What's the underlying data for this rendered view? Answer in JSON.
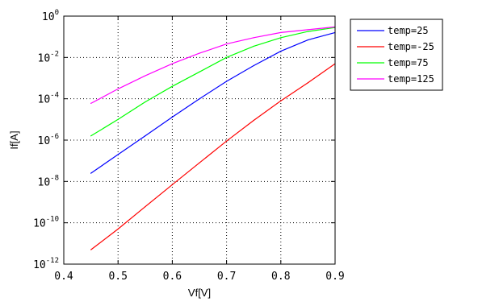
{
  "chart_data": {
    "type": "line",
    "xlabel": "Vf[V]",
    "ylabel": "If[A]",
    "xlim": [
      0.4,
      0.9
    ],
    "ylim_log10": [
      -12,
      0
    ],
    "y_scale": "log",
    "grid": true,
    "legend_placement": "outside-right",
    "x_ticks": [
      "0.4",
      "0.5",
      "0.6",
      "0.7",
      "0.8",
      "0.9"
    ],
    "y_ticks": [
      {
        "base": "10",
        "exp": "0"
      },
      {
        "base": "10",
        "exp": "-2"
      },
      {
        "base": "10",
        "exp": "-4"
      },
      {
        "base": "10",
        "exp": "-6"
      },
      {
        "base": "10",
        "exp": "-8"
      },
      {
        "base": "10",
        "exp": "-10"
      },
      {
        "base": "10",
        "exp": "-12"
      }
    ],
    "series": [
      {
        "name": "temp=25",
        "color": "#0000ff",
        "points": [
          [
            0.45,
            2.5e-08
          ],
          [
            0.5,
            2e-07
          ],
          [
            0.55,
            1.6e-06
          ],
          [
            0.6,
            1.3e-05
          ],
          [
            0.65,
            0.0001
          ],
          [
            0.7,
            0.0007
          ],
          [
            0.75,
            0.004
          ],
          [
            0.8,
            0.02
          ],
          [
            0.85,
            0.07
          ],
          [
            0.9,
            0.16
          ]
        ]
      },
      {
        "name": "temp=-25",
        "color": "#ff0000",
        "points": [
          [
            0.45,
            5e-12
          ],
          [
            0.5,
            5e-11
          ],
          [
            0.55,
            6e-10
          ],
          [
            0.6,
            7e-09
          ],
          [
            0.65,
            8e-08
          ],
          [
            0.7,
            9e-07
          ],
          [
            0.75,
            9e-06
          ],
          [
            0.8,
            8e-05
          ],
          [
            0.85,
            0.0006
          ],
          [
            0.9,
            0.005
          ]
        ]
      },
      {
        "name": "temp=75",
        "color": "#00ff00",
        "points": [
          [
            0.45,
            1.6e-06
          ],
          [
            0.5,
            1e-05
          ],
          [
            0.55,
            7e-05
          ],
          [
            0.6,
            0.0004
          ],
          [
            0.65,
            0.002
          ],
          [
            0.7,
            0.01
          ],
          [
            0.75,
            0.035
          ],
          [
            0.8,
            0.09
          ],
          [
            0.85,
            0.18
          ],
          [
            0.9,
            0.28
          ]
        ]
      },
      {
        "name": "temp=125",
        "color": "#ff00ff",
        "points": [
          [
            0.45,
            6e-05
          ],
          [
            0.5,
            0.0003
          ],
          [
            0.55,
            0.0013
          ],
          [
            0.6,
            0.005
          ],
          [
            0.65,
            0.016
          ],
          [
            0.7,
            0.045
          ],
          [
            0.75,
            0.09
          ],
          [
            0.8,
            0.16
          ],
          [
            0.85,
            0.22
          ],
          [
            0.9,
            0.3
          ]
        ]
      }
    ]
  }
}
